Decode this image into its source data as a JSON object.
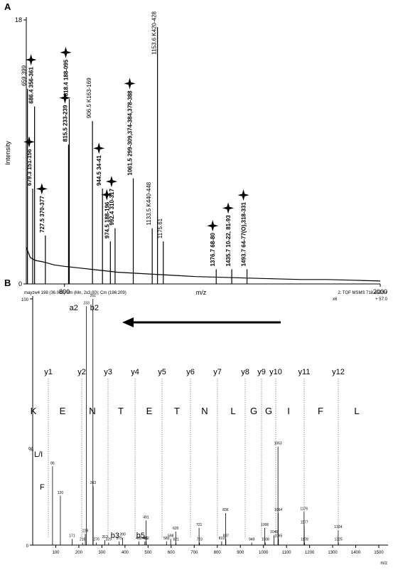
{
  "chart_data": [
    {
      "type": "spectrum",
      "panel": "A",
      "xlabel": "m/z",
      "ylabel": "Intensity",
      "xlim": [
        655,
        2000
      ],
      "ylim": [
        0,
        18
      ],
      "xticks": [
        800,
        2000
      ],
      "yticks": [
        0,
        18
      ],
      "x": [
        659.399,
        679.3,
        686.4,
        727.5,
        815.5,
        818.4,
        906.5,
        944.5,
        974.5,
        992.4,
        1061.5,
        1133.5,
        1153.6,
        1175.61,
        1376.7,
        1435.7,
        1493.7
      ],
      "values": [
        13.3,
        6.5,
        12.1,
        3.3,
        9.5,
        12.6,
        11.1,
        6.5,
        2.9,
        3.8,
        7.2,
        3.8,
        17.5,
        2.9,
        1.0,
        1.0,
        1.0
      ],
      "peak_labels": [
        "659.399",
        "679.3  151-156",
        "686.4  356-361",
        "727.5  370-377",
        "815.5  233-239",
        "818.4  188-095",
        "906.5  K163-169",
        "944.5  34-41",
        "974.5  188-196",
        "992.4  310-317",
        "1061.5 299-309,374-384,378-388",
        "1133.5  K440-448",
        "1153.6  K420-428",
        "1175.61",
        "1376.7  68-80",
        "1435.7  10-22, 81-93",
        "1493.7  64-77(O),318-331"
      ],
      "starred": [
        false,
        true,
        true,
        true,
        true,
        true,
        false,
        true,
        true,
        true,
        true,
        false,
        false,
        false,
        true,
        true,
        true
      ],
      "continuum": {
        "x": [
          655,
          670,
          690,
          720,
          760,
          800,
          850,
          900,
          950,
          1000,
          1100,
          1200,
          1300,
          1400,
          1500,
          1600,
          1700,
          1800,
          1900,
          2000
        ],
        "values": [
          2.5,
          1.8,
          1.6,
          1.5,
          1.3,
          1.2,
          1.1,
          1.0,
          0.9,
          0.8,
          0.7,
          0.6,
          0.5,
          0.45,
          0.4,
          0.35,
          0.3,
          0.3,
          0.25,
          0.2
        ]
      },
      "color": "#000000"
    },
    {
      "type": "spectrum",
      "panel": "B",
      "header_left": "mayzw4  198 (36.008) Sm (Mn, 2x3.00); Cm (196:209)",
      "header_right": "2: TOF MSMS 718.45ES+",
      "scale_note": "x6",
      "offset_note": "+ 57.0",
      "xlabel": "m/z",
      "ylabel": "%",
      "xlim": [
        0,
        1540
      ],
      "ylim": [
        0,
        100
      ],
      "xticks": [
        100,
        200,
        300,
        400,
        500,
        600,
        700,
        800,
        900,
        1000,
        1100,
        1200,
        1300,
        1400,
        1500
      ],
      "yticks": [
        0,
        100
      ],
      "x": [
        86,
        120,
        171,
        216,
        228,
        233,
        261,
        262,
        276,
        313,
        329,
        375,
        390,
        460,
        486,
        491,
        492,
        580,
        598,
        620,
        621,
        721,
        723,
        819,
        836,
        837,
        949,
        1006,
        1008,
        1046,
        1063,
        1064,
        1065,
        1176,
        1177,
        1178,
        1324,
        1325
      ],
      "values": [
        32,
        20,
        2.5,
        1,
        4.5,
        97,
        100,
        24,
        1,
        2,
        1,
        1.5,
        3,
        1.5,
        1.5,
        10,
        1.5,
        1.5,
        2.5,
        5.5,
        1,
        7,
        1,
        1.5,
        13,
        2.5,
        1,
        7,
        1,
        4,
        40,
        13,
        2.5,
        13.5,
        8,
        1,
        6,
        1
      ],
      "fragment_labels": [
        "L/I",
        "F",
        "a2",
        "b2",
        "b3",
        "b5"
      ],
      "ion_labels": [
        "y1",
        "y2",
        "y3",
        "y4",
        "y5",
        "y6",
        "y7",
        "y8",
        "y9",
        "y10",
        "y11",
        "y12"
      ],
      "sequence": [
        "K",
        "E",
        "N",
        "T",
        "E",
        "T",
        "N",
        "L",
        "G",
        "G",
        "I",
        "F",
        "L"
      ],
      "color": "#000000"
    }
  ]
}
